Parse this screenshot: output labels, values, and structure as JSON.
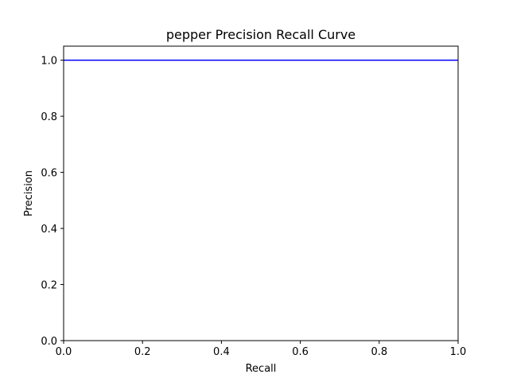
{
  "chart_data": {
    "type": "line",
    "title": "pepper Precision Recall Curve",
    "xlabel": "Recall",
    "ylabel": "Precision",
    "xlim": [
      0.0,
      1.0
    ],
    "ylim": [
      0.0,
      1.05
    ],
    "xticks": [
      0.0,
      0.2,
      0.4,
      0.6,
      0.8,
      1.0
    ],
    "xtick_labels": [
      "0.0",
      "0.2",
      "0.4",
      "0.6",
      "0.8",
      "1.0"
    ],
    "yticks": [
      0.0,
      0.2,
      0.4,
      0.6,
      0.8,
      1.0
    ],
    "ytick_labels": [
      "0.0",
      "0.2",
      "0.4",
      "0.6",
      "0.8",
      "1.0"
    ],
    "grid": false,
    "series": [
      {
        "color": "#0000ff",
        "x": [
          0.0,
          1.0
        ],
        "y": [
          1.0,
          1.0
        ]
      }
    ]
  }
}
